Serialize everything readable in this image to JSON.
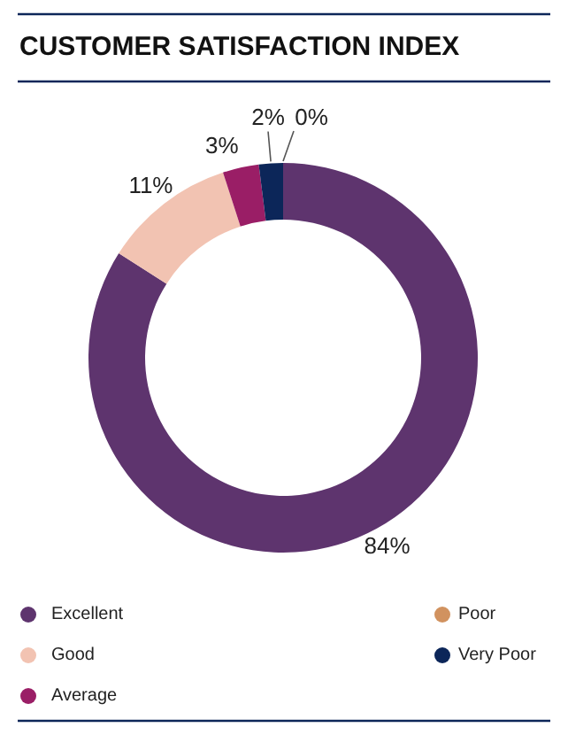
{
  "chart_data": {
    "type": "donut",
    "title": "CUSTOMER SATISFACTION INDEX",
    "categories": [
      "Excellent",
      "Good",
      "Average",
      "Very Poor",
      "Poor"
    ],
    "values": [
      84,
      11,
      3,
      2,
      0
    ],
    "colors": [
      "#5e346e",
      "#f2c3b2",
      "#9a1e66",
      "#0c2659",
      "#d1925f"
    ],
    "value_labels": [
      "84%",
      "11%",
      "3%",
      "2%",
      "0%"
    ],
    "legend": "bottom"
  }
}
